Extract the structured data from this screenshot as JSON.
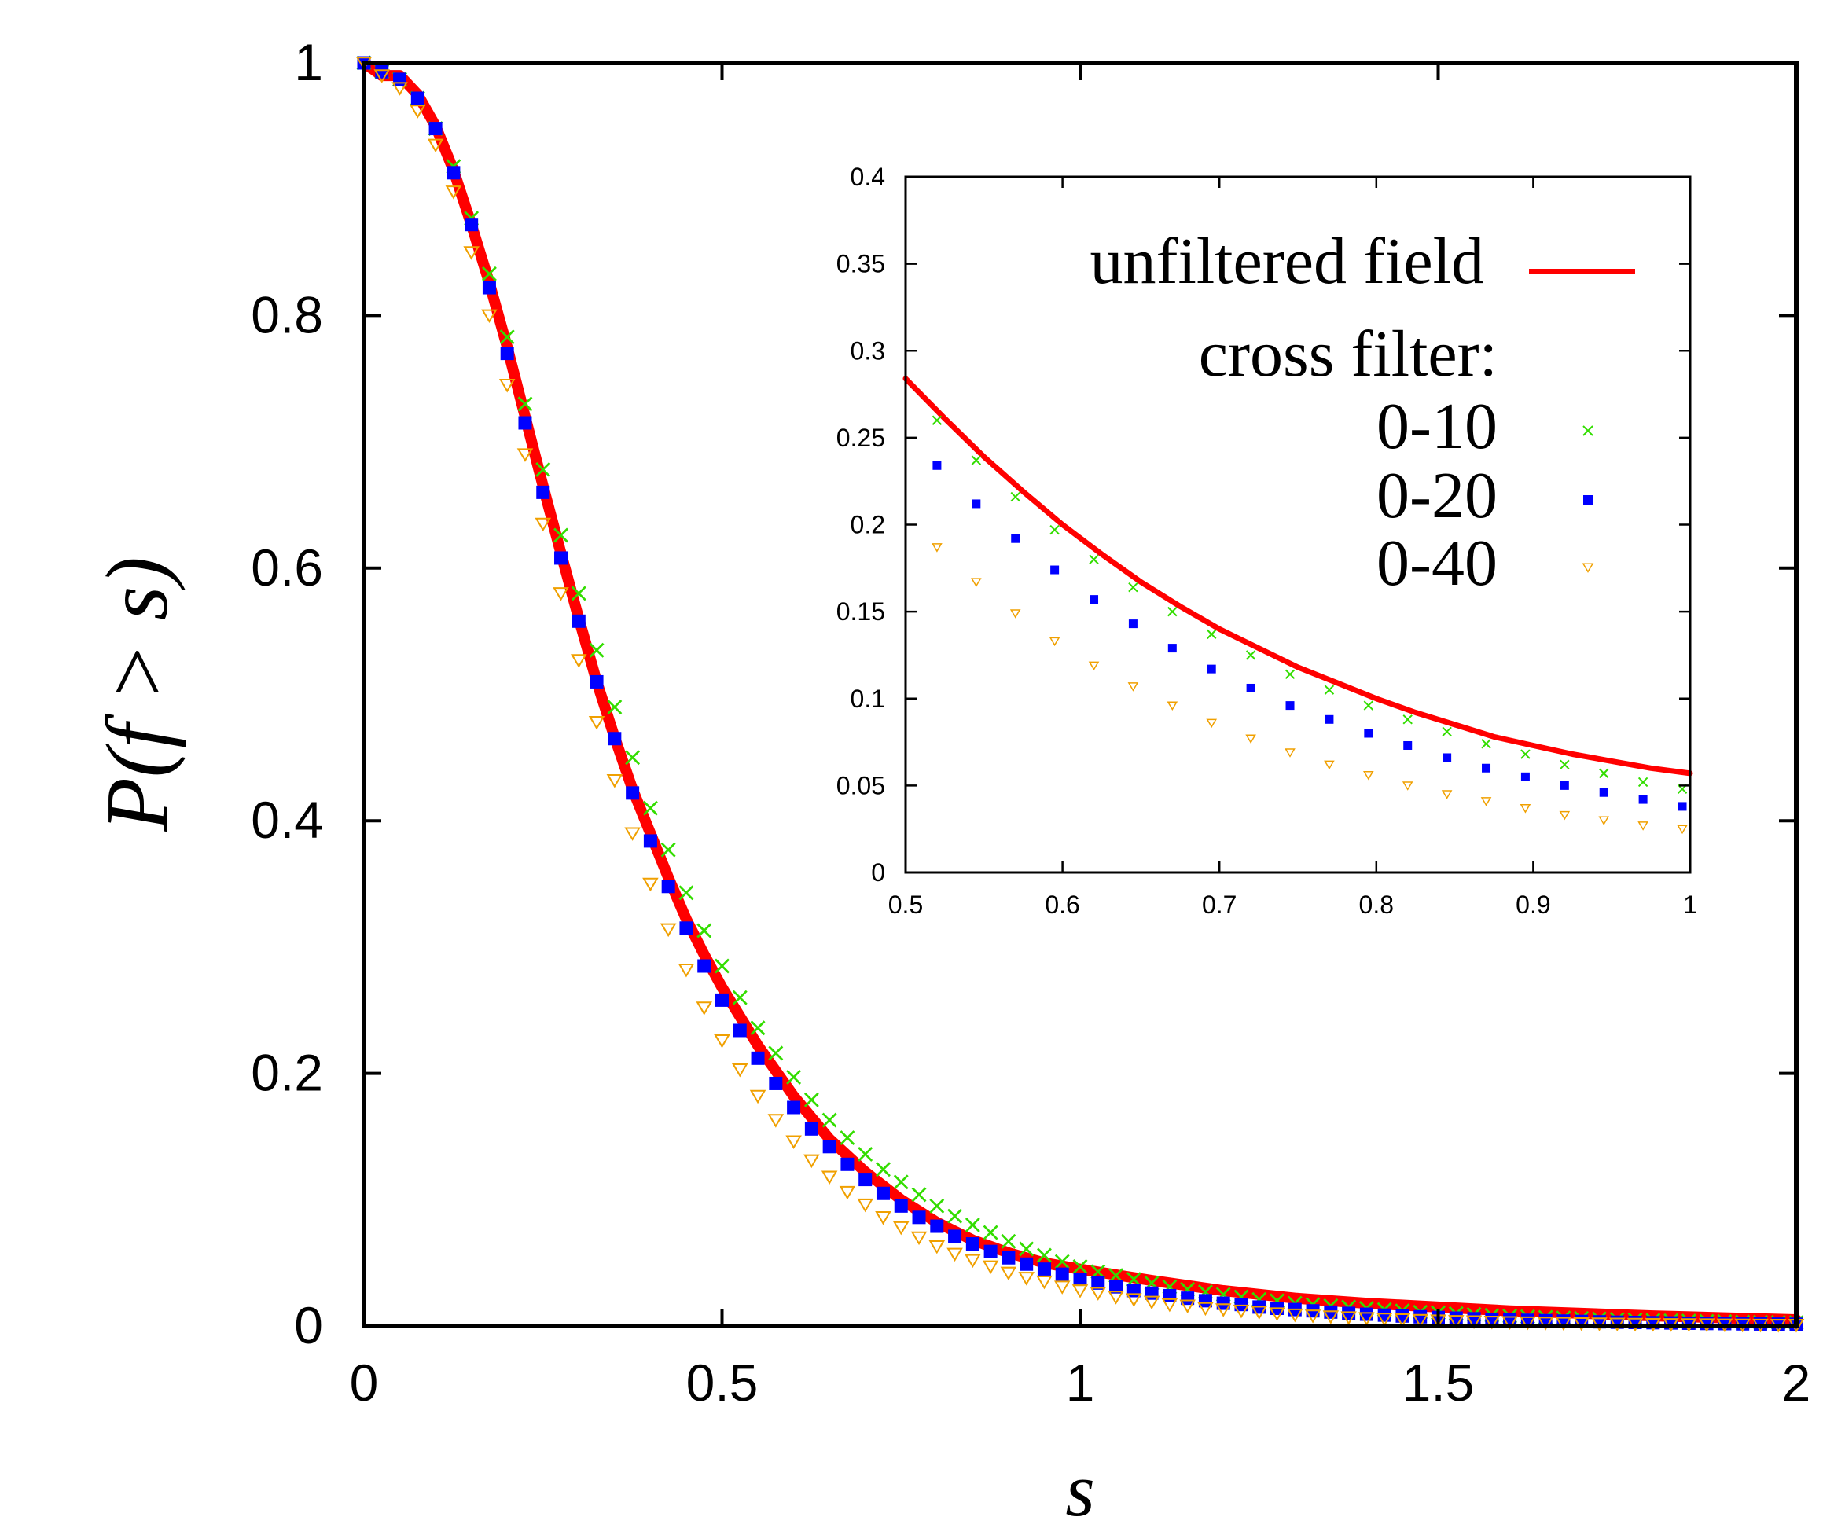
{
  "chart_data": [
    {
      "id": "main",
      "type": "scatter",
      "xlabel": "s",
      "ylabel": "P(f > s)",
      "xlim": [
        0,
        2
      ],
      "ylim": [
        0,
        1
      ],
      "xticks": [
        {
          "value": 0,
          "label": "0"
        },
        {
          "value": 0.5,
          "label": "0.5"
        },
        {
          "value": 1,
          "label": "1"
        },
        {
          "value": 1.5,
          "label": "1.5"
        },
        {
          "value": 2,
          "label": "2"
        }
      ],
      "yticks": [
        {
          "value": 0,
          "label": "0"
        },
        {
          "value": 0.2,
          "label": "0.2"
        },
        {
          "value": 0.4,
          "label": "0.4"
        },
        {
          "value": 0.6,
          "label": "0.6"
        },
        {
          "value": 0.8,
          "label": "0.8"
        },
        {
          "value": 1,
          "label": "1"
        }
      ],
      "series": [
        {
          "name": "unfiltered field",
          "style": "line",
          "color": "#ff0000",
          "x": [
            0,
            0.025,
            0.05,
            0.075,
            0.1,
            0.125,
            0.15,
            0.175,
            0.2,
            0.225,
            0.25,
            0.275,
            0.3,
            0.325,
            0.35,
            0.375,
            0.4,
            0.425,
            0.45,
            0.475,
            0.5,
            0.55,
            0.6,
            0.65,
            0.7,
            0.75,
            0.8,
            0.85,
            0.9,
            0.95,
            1,
            1.1,
            1.2,
            1.3,
            1.4,
            1.5,
            1.6,
            1.7,
            1.8,
            1.9,
            2
          ],
          "y": [
            1,
            0.99,
            0.99,
            0.975,
            0.95,
            0.915,
            0.872,
            0.826,
            0.775,
            0.72,
            0.665,
            0.612,
            0.56,
            0.51,
            0.466,
            0.425,
            0.39,
            0.355,
            0.322,
            0.294,
            0.268,
            0.222,
            0.182,
            0.148,
            0.122,
            0.1,
            0.082,
            0.068,
            0.058,
            0.05,
            0.045,
            0.036,
            0.028,
            0.022,
            0.018,
            0.015,
            0.012,
            0.01,
            0.008,
            0.0065,
            0.005
          ]
        },
        {
          "name": "0-10",
          "style": "cross",
          "color": "#33dd00",
          "x": [
            0,
            0.025,
            0.05,
            0.075,
            0.1,
            0.125,
            0.15,
            0.175,
            0.2,
            0.225,
            0.25,
            0.275,
            0.3,
            0.325,
            0.35,
            0.375,
            0.4,
            0.425,
            0.45,
            0.475,
            0.5,
            0.525,
            0.55,
            0.575,
            0.6,
            0.625,
            0.65,
            0.675,
            0.7,
            0.725,
            0.75,
            0.775,
            0.8,
            0.825,
            0.85,
            0.875,
            0.9,
            0.925,
            0.95,
            0.975,
            1,
            1.025,
            1.05,
            1.075,
            1.1,
            1.125,
            1.15,
            1.175,
            1.2,
            1.225,
            1.25,
            1.275,
            1.3,
            1.325,
            1.35,
            1.375,
            1.4,
            1.425,
            1.45,
            1.475,
            1.5,
            1.525,
            1.55,
            1.575,
            1.6,
            1.625,
            1.65,
            1.675,
            1.7,
            1.725,
            1.75,
            1.775,
            1.8,
            1.825,
            1.85,
            1.875,
            1.9,
            1.925,
            1.95,
            1.975,
            2
          ],
          "y": [
            1,
            0.993,
            0.987,
            0.972,
            0.948,
            0.918,
            0.877,
            0.833,
            0.783,
            0.73,
            0.678,
            0.626,
            0.58,
            0.535,
            0.49,
            0.45,
            0.41,
            0.377,
            0.343,
            0.313,
            0.285,
            0.26,
            0.236,
            0.216,
            0.197,
            0.179,
            0.163,
            0.149,
            0.136,
            0.124,
            0.114,
            0.104,
            0.095,
            0.087,
            0.08,
            0.074,
            0.067,
            0.061,
            0.056,
            0.051,
            0.047,
            0.043,
            0.04,
            0.037,
            0.034,
            0.031,
            0.029,
            0.027,
            0.025,
            0.023,
            0.021,
            0.02,
            0.018,
            0.017,
            0.016,
            0.015,
            0.014,
            0.013,
            0.012,
            0.011,
            0.0105,
            0.0098,
            0.0091,
            0.0085,
            0.0079,
            0.0074,
            0.0069,
            0.0064,
            0.006,
            0.0056,
            0.0052,
            0.0049,
            0.0045,
            0.0042,
            0.004,
            0.0037,
            0.0035,
            0.0032,
            0.003,
            0.0028,
            0.0026
          ]
        },
        {
          "name": "0-20",
          "style": "square",
          "color": "#0000ff",
          "x": [
            0,
            0.025,
            0.05,
            0.075,
            0.1,
            0.125,
            0.15,
            0.175,
            0.2,
            0.225,
            0.25,
            0.275,
            0.3,
            0.325,
            0.35,
            0.375,
            0.4,
            0.425,
            0.45,
            0.475,
            0.5,
            0.525,
            0.55,
            0.575,
            0.6,
            0.625,
            0.65,
            0.675,
            0.7,
            0.725,
            0.75,
            0.775,
            0.8,
            0.825,
            0.85,
            0.875,
            0.9,
            0.925,
            0.95,
            0.975,
            1,
            1.025,
            1.05,
            1.075,
            1.1,
            1.125,
            1.15,
            1.175,
            1.2,
            1.225,
            1.25,
            1.275,
            1.3,
            1.325,
            1.35,
            1.375,
            1.4,
            1.425,
            1.45,
            1.475,
            1.5,
            1.525,
            1.55,
            1.575,
            1.6,
            1.625,
            1.65,
            1.675,
            1.7,
            1.725,
            1.75,
            1.775,
            1.8,
            1.825,
            1.85,
            1.875,
            1.9,
            1.925,
            1.95,
            1.975,
            2
          ],
          "y": [
            1,
            0.993,
            0.987,
            0.972,
            0.948,
            0.913,
            0.872,
            0.822,
            0.77,
            0.715,
            0.66,
            0.608,
            0.558,
            0.51,
            0.465,
            0.422,
            0.384,
            0.348,
            0.315,
            0.285,
            0.258,
            0.234,
            0.212,
            0.192,
            0.173,
            0.156,
            0.142,
            0.128,
            0.116,
            0.105,
            0.095,
            0.086,
            0.079,
            0.071,
            0.065,
            0.059,
            0.054,
            0.049,
            0.045,
            0.041,
            0.037,
            0.034,
            0.031,
            0.028,
            0.026,
            0.024,
            0.022,
            0.02,
            0.018,
            0.017,
            0.015,
            0.014,
            0.013,
            0.012,
            0.011,
            0.01,
            0.0093,
            0.0086,
            0.0079,
            0.0073,
            0.0067,
            0.0062,
            0.0057,
            0.0053,
            0.0049,
            0.0045,
            0.0042,
            0.0039,
            0.0036,
            0.0033,
            0.003,
            0.0028,
            0.0026,
            0.0024,
            0.0022,
            0.002,
            0.0019,
            0.0017,
            0.0016,
            0.0015,
            0.0014
          ]
        },
        {
          "name": "0-40",
          "style": "triangle",
          "color": "#f0a000",
          "x": [
            0,
            0.025,
            0.05,
            0.075,
            0.1,
            0.125,
            0.15,
            0.175,
            0.2,
            0.225,
            0.25,
            0.275,
            0.3,
            0.325,
            0.35,
            0.375,
            0.4,
            0.425,
            0.45,
            0.475,
            0.5,
            0.525,
            0.55,
            0.575,
            0.6,
            0.625,
            0.65,
            0.675,
            0.7,
            0.725,
            0.75,
            0.775,
            0.8,
            0.825,
            0.85,
            0.875,
            0.9,
            0.925,
            0.95,
            0.975,
            1,
            1.025,
            1.05,
            1.075,
            1.1,
            1.125,
            1.15,
            1.175,
            1.2,
            1.225,
            1.25,
            1.275,
            1.3,
            1.325,
            1.35,
            1.375,
            1.4,
            1.425,
            1.45,
            1.475,
            1.5,
            1.525,
            1.55,
            1.575,
            1.6,
            1.625,
            1.65,
            1.675,
            1.7,
            1.725,
            1.75,
            1.775,
            1.8,
            1.825,
            1.85,
            1.875,
            1.9,
            1.925,
            1.95,
            1.975,
            2
          ],
          "y": [
            1,
            0.99,
            0.98,
            0.962,
            0.935,
            0.898,
            0.85,
            0.8,
            0.745,
            0.69,
            0.635,
            0.58,
            0.527,
            0.478,
            0.432,
            0.39,
            0.35,
            0.314,
            0.282,
            0.252,
            0.226,
            0.203,
            0.182,
            0.163,
            0.146,
            0.131,
            0.118,
            0.106,
            0.096,
            0.086,
            0.078,
            0.07,
            0.063,
            0.057,
            0.052,
            0.047,
            0.042,
            0.038,
            0.035,
            0.031,
            0.028,
            0.026,
            0.023,
            0.021,
            0.019,
            0.017,
            0.016,
            0.014,
            0.013,
            0.012,
            0.011,
            0.0098,
            0.0089,
            0.0081,
            0.0074,
            0.0067,
            0.0061,
            0.0056,
            0.0051,
            0.0046,
            0.0042,
            0.0038,
            0.0035,
            0.0032,
            0.0029,
            0.0027,
            0.0024,
            0.0022,
            0.002,
            0.0018,
            0.0017,
            0.0015,
            0.0014,
            0.0013,
            0.0012,
            0.0011,
            0.001,
            0.0009,
            0.0008,
            0.0007,
            0.0007
          ]
        }
      ]
    },
    {
      "id": "inset",
      "type": "scatter",
      "xlim": [
        0.5,
        1
      ],
      "ylim": [
        0,
        0.4
      ],
      "xticks": [
        {
          "value": 0.5,
          "label": "0.5"
        },
        {
          "value": 0.6,
          "label": "0.6"
        },
        {
          "value": 0.7,
          "label": "0.7"
        },
        {
          "value": 0.8,
          "label": "0.8"
        },
        {
          "value": 0.9,
          "label": "0.9"
        },
        {
          "value": 1,
          "label": "1"
        }
      ],
      "yticks": [
        {
          "value": 0,
          "label": "0"
        },
        {
          "value": 0.05,
          "label": "0.05"
        },
        {
          "value": 0.1,
          "label": "0.1"
        },
        {
          "value": 0.15,
          "label": "0.15"
        },
        {
          "value": 0.2,
          "label": "0.2"
        },
        {
          "value": 0.25,
          "label": "0.25"
        },
        {
          "value": 0.3,
          "label": "0.3"
        },
        {
          "value": 0.35,
          "label": "0.35"
        },
        {
          "value": 0.4,
          "label": "0.4"
        }
      ],
      "legend": {
        "position": "top-right",
        "heading": "cross filter:",
        "entries": [
          "unfiltered field",
          "0-10",
          "0-20",
          "0-40"
        ]
      },
      "series": [
        {
          "name": "unfiltered field",
          "style": "line",
          "color": "#ff0000",
          "x": [
            0.5,
            0.525,
            0.55,
            0.575,
            0.6,
            0.625,
            0.65,
            0.675,
            0.7,
            0.725,
            0.75,
            0.775,
            0.8,
            0.825,
            0.85,
            0.875,
            0.9,
            0.925,
            0.95,
            0.975,
            1
          ],
          "y": [
            0.284,
            0.261,
            0.239,
            0.219,
            0.2,
            0.183,
            0.167,
            0.153,
            0.14,
            0.129,
            0.118,
            0.109,
            0.1,
            0.092,
            0.085,
            0.078,
            0.073,
            0.068,
            0.064,
            0.06,
            0.057
          ]
        },
        {
          "name": "0-10",
          "style": "cross",
          "color": "#33dd00",
          "x": [
            0.52,
            0.545,
            0.57,
            0.595,
            0.62,
            0.645,
            0.67,
            0.695,
            0.72,
            0.745,
            0.77,
            0.795,
            0.82,
            0.845,
            0.87,
            0.895,
            0.92,
            0.945,
            0.97,
            0.995
          ],
          "y": [
            0.26,
            0.237,
            0.216,
            0.197,
            0.18,
            0.164,
            0.15,
            0.137,
            0.125,
            0.114,
            0.105,
            0.096,
            0.088,
            0.081,
            0.074,
            0.068,
            0.062,
            0.057,
            0.052,
            0.048
          ]
        },
        {
          "name": "0-20",
          "style": "square",
          "color": "#0000ff",
          "x": [
            0.52,
            0.545,
            0.57,
            0.595,
            0.62,
            0.645,
            0.67,
            0.695,
            0.72,
            0.745,
            0.77,
            0.795,
            0.82,
            0.845,
            0.87,
            0.895,
            0.92,
            0.945,
            0.97,
            0.995
          ],
          "y": [
            0.234,
            0.212,
            0.192,
            0.174,
            0.157,
            0.143,
            0.129,
            0.117,
            0.106,
            0.096,
            0.088,
            0.08,
            0.073,
            0.066,
            0.06,
            0.055,
            0.05,
            0.046,
            0.042,
            0.038
          ]
        },
        {
          "name": "0-40",
          "style": "triangle",
          "color": "#f0a000",
          "x": [
            0.52,
            0.545,
            0.57,
            0.595,
            0.62,
            0.645,
            0.67,
            0.695,
            0.72,
            0.745,
            0.77,
            0.795,
            0.82,
            0.845,
            0.87,
            0.895,
            0.92,
            0.945,
            0.97,
            0.995
          ],
          "y": [
            0.187,
            0.167,
            0.149,
            0.133,
            0.119,
            0.107,
            0.096,
            0.086,
            0.077,
            0.069,
            0.062,
            0.056,
            0.05,
            0.045,
            0.041,
            0.037,
            0.033,
            0.03,
            0.027,
            0.025
          ]
        }
      ]
    }
  ]
}
